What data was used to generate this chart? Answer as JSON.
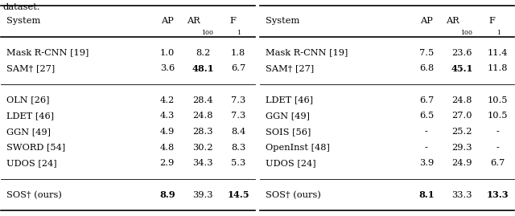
{
  "left_table": {
    "header": [
      "System",
      "AP",
      "AR_100",
      "F_1"
    ],
    "group1": [
      {
        "system": "Mask R-CNN [19]",
        "ap": "1.0",
        "ar": "8.2",
        "f1": "1.8",
        "bold": []
      },
      {
        "system": "SAM† [27]",
        "ap": "3.6",
        "ar": "48.1",
        "f1": "6.7",
        "bold": [
          "ar"
        ]
      }
    ],
    "group2": [
      {
        "system": "OLN [26]",
        "ap": "4.2",
        "ar": "28.4",
        "f1": "7.3",
        "bold": []
      },
      {
        "system": "LDET [46]",
        "ap": "4.3",
        "ar": "24.8",
        "f1": "7.3",
        "bold": []
      },
      {
        "system": "GGN [49]",
        "ap": "4.9",
        "ar": "28.3",
        "f1": "8.4",
        "bold": []
      },
      {
        "system": "SWORD [54]",
        "ap": "4.8",
        "ar": "30.2",
        "f1": "8.3",
        "bold": []
      },
      {
        "system": "UDOS [24]",
        "ap": "2.9",
        "ar": "34.3",
        "f1": "5.3",
        "bold": []
      }
    ],
    "group3": [
      {
        "system": "SOS† (ours)",
        "ap": "8.9",
        "ar": "39.3",
        "f1": "14.5",
        "bold": [
          "ap",
          "f1"
        ]
      }
    ]
  },
  "right_table": {
    "header": [
      "System",
      "AP",
      "AR_100",
      "F_1"
    ],
    "group1": [
      {
        "system": "Mask R-CNN [19]",
        "ap": "7.5",
        "ar": "23.6",
        "f1": "11.4",
        "bold": []
      },
      {
        "system": "SAM† [27]",
        "ap": "6.8",
        "ar": "45.1",
        "f1": "11.8",
        "bold": [
          "ar"
        ]
      }
    ],
    "group2": [
      {
        "system": "LDET [46]",
        "ap": "6.7",
        "ar": "24.8",
        "f1": "10.5",
        "bold": []
      },
      {
        "system": "GGN [49]",
        "ap": "6.5",
        "ar": "27.0",
        "f1": "10.5",
        "bold": []
      },
      {
        "system": "SOIS [56]",
        "ap": "-",
        "ar": "25.2",
        "f1": "-",
        "bold": []
      },
      {
        "system": "OpenInst [48]",
        "ap": "-",
        "ar": "29.3",
        "f1": "-",
        "bold": []
      },
      {
        "system": "UDOS [24]",
        "ap": "3.9",
        "ar": "24.9",
        "f1": "6.7",
        "bold": []
      }
    ],
    "group3": [
      {
        "system": "SOS† (ours)",
        "ap": "8.1",
        "ar": "33.3",
        "f1": "13.3",
        "bold": [
          "ap",
          "f1"
        ]
      }
    ]
  },
  "text_color": "#000000",
  "bg_color": "#ffffff",
  "font_size": 8.2
}
